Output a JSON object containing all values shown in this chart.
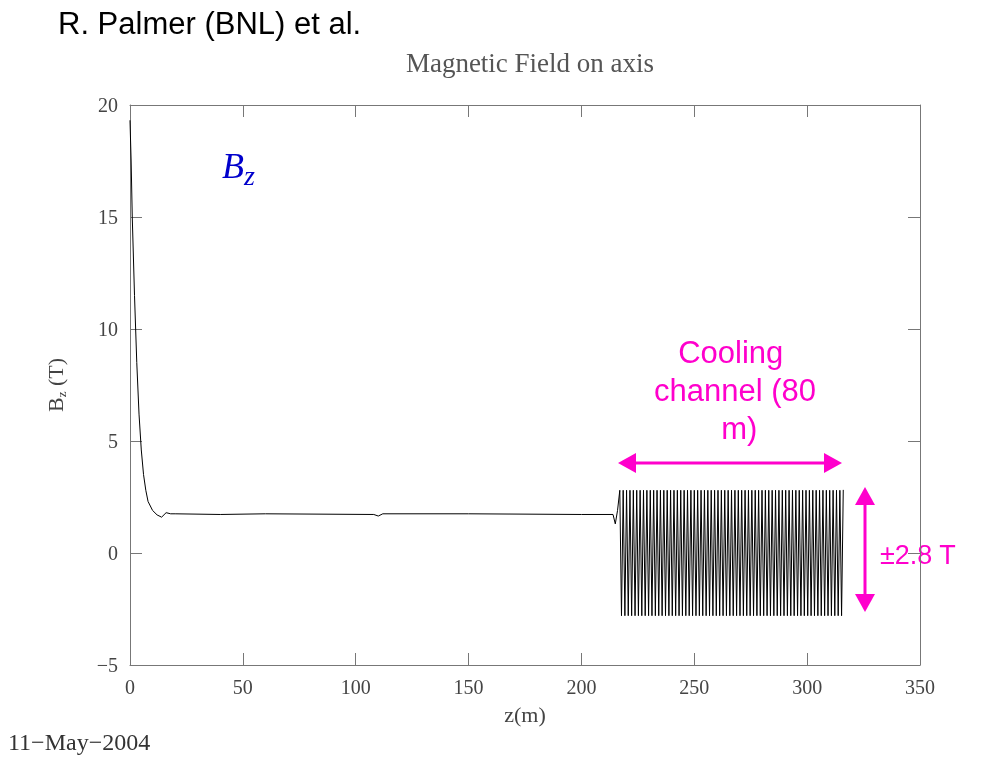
{
  "chart_data": {
    "type": "line",
    "title": "Magnetic Field on axis",
    "xlabel": "z(m)",
    "ylabel": "B$_{z}$ (T)",
    "annotations": [
      "R. Palmer (BNL) et al.",
      "B$_{z}$",
      "Cooling channel (80 m)",
      "±2.8 T",
      "11−May−2004"
    ],
    "xlim": [
      0,
      350
    ],
    "xticks": [
      0,
      50,
      100,
      150,
      200,
      250,
      300,
      350
    ],
    "ylim": [
      -5,
      20
    ],
    "yticks": [
      -5,
      0,
      5,
      10,
      15,
      20
    ],
    "marker": "none",
    "line_style": "solid",
    "series": [
      {
        "color": "#000000",
        "x": [
          0,
          0.5,
          1,
          2,
          3,
          4,
          5,
          6,
          7,
          8,
          10,
          12,
          14,
          16,
          18,
          20,
          40,
          60,
          108,
          110,
          112,
          150,
          200,
          214,
          215,
          216,
          217,
          217.75,
          218.5,
          219.25,
          220,
          220.75,
          221.5,
          222.25,
          223,
          223.75,
          224.5,
          225.25,
          226,
          226.75,
          227.5,
          228.25,
          229,
          229.75,
          230.5,
          231.25,
          232,
          232.75,
          233.5,
          234.25,
          235,
          235.75,
          236.5,
          237.25,
          238,
          238.75,
          239.5,
          240.25,
          241,
          241.75,
          242.5,
          243.25,
          244,
          244.75,
          245.5,
          246.25,
          247,
          247.75,
          248.5,
          249.25,
          250,
          250.75,
          251.5,
          252.25,
          253,
          253.75,
          254.5,
          255.25,
          256,
          256.75,
          257.5,
          258.25,
          259,
          259.75,
          260.5,
          261.25,
          262,
          262.75,
          263.5,
          264.25,
          265,
          265.75,
          266.5,
          267.25,
          268,
          268.75,
          269.5,
          270.25,
          271,
          271.75,
          272.5,
          273.25,
          274,
          274.75,
          275.5,
          276.25,
          277,
          277.75,
          278.5,
          279.25,
          280,
          280.75,
          281.5,
          282.25,
          283,
          283.75,
          284.5,
          285.25,
          286,
          286.75,
          287.5,
          288.25,
          289,
          289.75,
          290.5,
          291.25,
          292,
          292.75,
          293.5,
          294.25,
          295,
          295.75,
          296.5,
          297.25,
          298,
          298.75,
          299.5,
          300.25,
          301,
          301.75,
          302.5,
          303.25,
          304,
          304.75,
          305.5,
          306.25,
          307,
          307.75,
          308.5,
          309.25,
          310,
          310.75,
          311.5,
          312.25,
          313,
          313.75,
          314.5,
          315.25,
          316
        ],
        "values": [
          19.3,
          17.5,
          15,
          11.5,
          8.5,
          6.2,
          4.6,
          3.5,
          2.8,
          2.3,
          1.9,
          1.7,
          1.6,
          1.8,
          1.75,
          1.75,
          1.72,
          1.75,
          1.72,
          1.65,
          1.75,
          1.75,
          1.72,
          1.72,
          1.3,
          1.9,
          2.8,
          -2.8,
          2.8,
          -2.8,
          2.8,
          -2.8,
          2.8,
          -2.8,
          2.8,
          -2.8,
          2.8,
          -2.8,
          2.8,
          -2.8,
          2.8,
          -2.8,
          2.8,
          -2.8,
          2.8,
          -2.8,
          2.8,
          -2.8,
          2.8,
          -2.8,
          2.8,
          -2.8,
          2.8,
          -2.8,
          2.8,
          -2.8,
          2.8,
          -2.8,
          2.8,
          -2.8,
          2.8,
          -2.8,
          2.8,
          -2.8,
          2.8,
          -2.8,
          2.8,
          -2.8,
          2.8,
          -2.8,
          2.8,
          -2.8,
          2.8,
          -2.8,
          2.8,
          -2.8,
          2.8,
          -2.8,
          2.8,
          -2.8,
          2.8,
          -2.8,
          2.8,
          -2.8,
          2.8,
          -2.8,
          2.8,
          -2.8,
          2.8,
          -2.8,
          2.8,
          -2.8,
          2.8,
          -2.8,
          2.8,
          -2.8,
          2.8,
          -2.8,
          2.8,
          -2.8,
          2.8,
          -2.8,
          2.8,
          -2.8,
          2.8,
          -2.8,
          2.8,
          -2.8,
          2.8,
          -2.8,
          2.8,
          -2.8,
          2.8,
          -2.8,
          2.8,
          -2.8,
          2.8,
          -2.8,
          2.8,
          -2.8,
          2.8,
          -2.8,
          2.8,
          -2.8,
          2.8,
          -2.8,
          2.8,
          -2.8,
          2.8,
          -2.8,
          2.8,
          -2.8,
          2.8,
          -2.8,
          2.8,
          -2.8,
          2.8,
          -2.8,
          2.8,
          -2.8,
          2.8,
          -2.8,
          2.8,
          -2.8,
          2.8,
          -2.8,
          2.8,
          -2.8,
          2.8,
          -2.8,
          2.8,
          -2.8,
          2.8,
          -2.8,
          2.8,
          -2.8,
          2.8,
          -2.8,
          2.8
        ]
      }
    ]
  }
}
